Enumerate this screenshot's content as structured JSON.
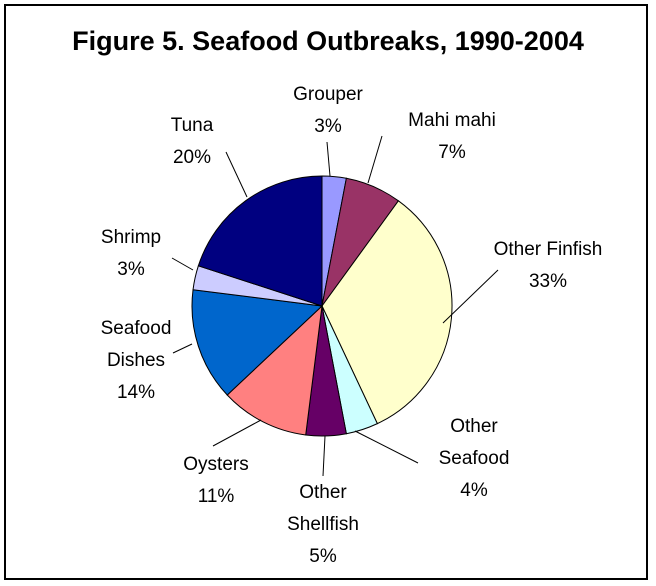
{
  "chart_data": {
    "type": "pie",
    "title": "Figure 5.  Seafood Outbreaks, 1990-2004",
    "slices": [
      {
        "label": "Grouper",
        "label_lines": [
          "Grouper",
          "3%"
        ],
        "value": 3,
        "color": "#9999ff"
      },
      {
        "label": "Mahi mahi",
        "label_lines": [
          "Mahi mahi",
          "7%"
        ],
        "value": 7,
        "color": "#993366"
      },
      {
        "label": "Other Finfish",
        "label_lines": [
          "Other Finfish",
          "33%"
        ],
        "value": 33,
        "color": "#ffffcc"
      },
      {
        "label": "Other Seafood",
        "label_lines": [
          "Other",
          "Seafood",
          "4%"
        ],
        "value": 4,
        "color": "#ccffff"
      },
      {
        "label": "Other Shellfish",
        "label_lines": [
          "Other",
          "Shellfish",
          "5%"
        ],
        "value": 5,
        "color": "#660066"
      },
      {
        "label": "Oysters",
        "label_lines": [
          "Oysters",
          "11%"
        ],
        "value": 11,
        "color": "#ff8080"
      },
      {
        "label": "Seafood Dishes",
        "label_lines": [
          "Seafood",
          "Dishes",
          "14%"
        ],
        "value": 14,
        "color": "#0066cc"
      },
      {
        "label": "Shrimp",
        "label_lines": [
          "Shrimp",
          "3%"
        ],
        "value": 3,
        "color": "#ccccff"
      },
      {
        "label": "Tuna",
        "label_lines": [
          "Tuna",
          "20%"
        ],
        "value": 20,
        "color": "#000080"
      }
    ]
  }
}
